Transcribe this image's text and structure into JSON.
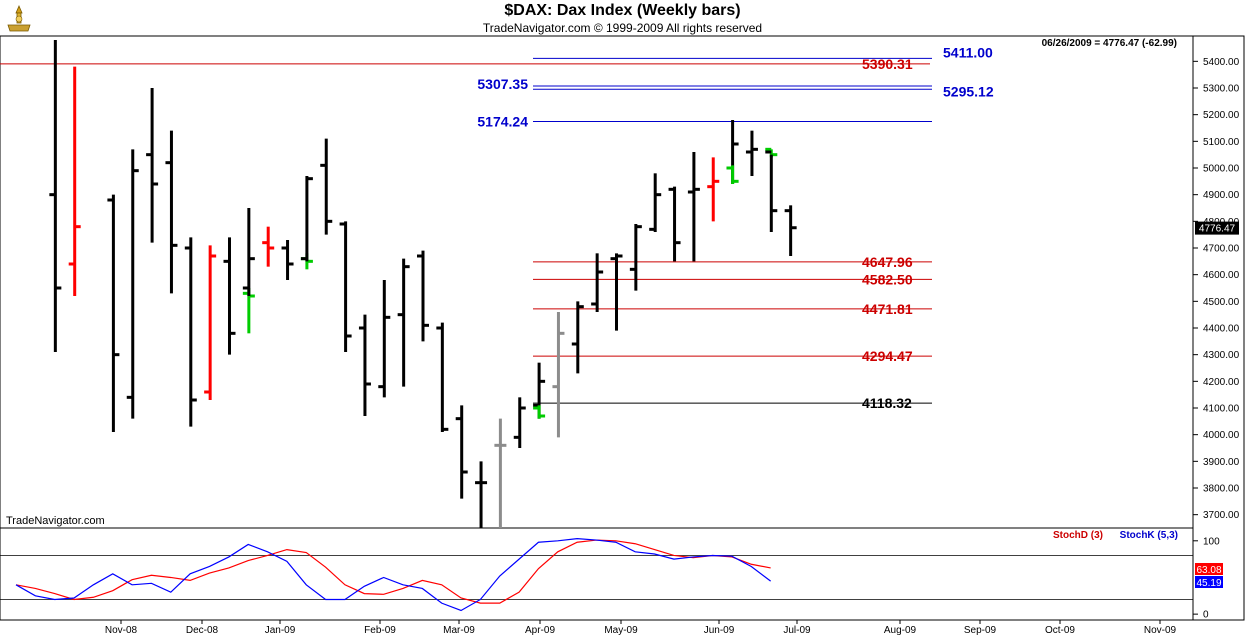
{
  "header": {
    "title": "$DAX:  Dax Index  (Weekly bars)",
    "subtitle": "TradeNavigator.com © 1999-2009 All rights reserved",
    "logo_icon": "trophy-icon"
  },
  "info": {
    "last_quote": "06/26/2009 = 4776.47 (-62.99)",
    "watermark": "TradeNavigator.com",
    "price_tag": "4776.47"
  },
  "colors": {
    "up": "#000000",
    "down_red": "#ff0000",
    "green": "#00cc00",
    "gray": "#8c8c8c",
    "level_blue": "#0000cc",
    "level_red": "#cc0000",
    "stoch_d": "#ff0000",
    "stoch_k": "#0000ff"
  },
  "chart_data": [
    {
      "type": "ohlc",
      "title": "$DAX:  Dax Index  (Weekly bars)",
      "ylim": [
        3650,
        5480
      ],
      "y_ticks": [
        3700,
        3800,
        3900,
        4000,
        4100,
        4200,
        4300,
        4400,
        4500,
        4600,
        4700,
        4800,
        4900,
        5000,
        5100,
        5200,
        5300,
        5400
      ],
      "x_labels": [
        "Nov-08",
        "Dec-08",
        "Jan-09",
        "Feb-09",
        "Mar-09",
        "Apr-09",
        "May-09",
        "Jun-09",
        "Jul-09",
        "Aug-09",
        "Sep-09",
        "Oct-09",
        "Nov-09"
      ],
      "grid": false,
      "bars": [
        {
          "week": 1,
          "o": 4900,
          "h": 5480,
          "l": 4310,
          "c": 4550,
          "color": "black"
        },
        {
          "week": 2,
          "o": 4640,
          "h": 5380,
          "l": 4520,
          "c": 4780,
          "color": "red"
        },
        {
          "week": 4,
          "o": 4880,
          "h": 4900,
          "l": 4010,
          "c": 4300,
          "color": "black"
        },
        {
          "week": 5,
          "o": 4140,
          "h": 5070,
          "l": 4060,
          "c": 4990,
          "color": "black"
        },
        {
          "week": 6,
          "o": 5050,
          "h": 5300,
          "l": 4720,
          "c": 4940,
          "color": "black"
        },
        {
          "week": 7,
          "o": 5020,
          "h": 5140,
          "l": 4530,
          "c": 4710,
          "color": "black"
        },
        {
          "week": 8,
          "o": 4700,
          "h": 4740,
          "l": 4030,
          "c": 4130,
          "color": "black"
        },
        {
          "week": 9,
          "o": 4160,
          "h": 4710,
          "l": 4130,
          "c": 4670,
          "color": "red"
        },
        {
          "week": 10,
          "o": 4650,
          "h": 4740,
          "l": 4300,
          "c": 4380,
          "color": "black"
        },
        {
          "week": 11,
          "o": 4530,
          "h": 4550,
          "l": 4380,
          "c": 4520,
          "color": "green"
        },
        {
          "week": 11,
          "o": 4550,
          "h": 4850,
          "l": 4520,
          "c": 4660,
          "color": "black"
        },
        {
          "week": 12,
          "o": 4720,
          "h": 4780,
          "l": 4630,
          "c": 4700,
          "color": "red"
        },
        {
          "week": 13,
          "o": 4700,
          "h": 4730,
          "l": 4580,
          "c": 4640,
          "color": "black"
        },
        {
          "week": 14,
          "o": 4660,
          "h": 4680,
          "l": 4620,
          "c": 4650,
          "color": "green"
        },
        {
          "week": 14,
          "o": 4660,
          "h": 4970,
          "l": 4650,
          "c": 4960,
          "color": "black"
        },
        {
          "week": 15,
          "o": 5010,
          "h": 5110,
          "l": 4750,
          "c": 4800,
          "color": "black"
        },
        {
          "week": 16,
          "o": 4790,
          "h": 4800,
          "l": 4310,
          "c": 4370,
          "color": "black"
        },
        {
          "week": 17,
          "o": 4400,
          "h": 4450,
          "l": 4070,
          "c": 4190,
          "color": "black"
        },
        {
          "week": 18,
          "o": 4180,
          "h": 4580,
          "l": 4140,
          "c": 4440,
          "color": "black"
        },
        {
          "week": 19,
          "o": 4450,
          "h": 4660,
          "l": 4180,
          "c": 4630,
          "color": "black"
        },
        {
          "week": 20,
          "o": 4670,
          "h": 4690,
          "l": 4350,
          "c": 4410,
          "color": "black"
        },
        {
          "week": 21,
          "o": 4400,
          "h": 4420,
          "l": 4010,
          "c": 4020,
          "color": "black"
        },
        {
          "week": 22,
          "o": 4060,
          "h": 4110,
          "l": 3760,
          "c": 3860,
          "color": "black"
        },
        {
          "week": 23,
          "o": 3820,
          "h": 3900,
          "l": 3650,
          "c": 3820,
          "color": "black"
        },
        {
          "week": 24,
          "o": 3960,
          "h": 4060,
          "l": 3650,
          "c": 3960,
          "color": "gray"
        },
        {
          "week": 25,
          "o": 3990,
          "h": 4140,
          "l": 3950,
          "c": 4100,
          "color": "black"
        },
        {
          "week": 26,
          "o": 4110,
          "h": 4270,
          "l": 4060,
          "c": 4200,
          "color": "black"
        },
        {
          "week": 26,
          "o": 4100,
          "h": 4110,
          "l": 4060,
          "c": 4070,
          "color": "green"
        },
        {
          "week": 27,
          "o": 4180,
          "h": 4460,
          "l": 3990,
          "c": 4380,
          "color": "gray"
        },
        {
          "week": 28,
          "o": 4340,
          "h": 4500,
          "l": 4230,
          "c": 4480,
          "color": "black"
        },
        {
          "week": 29,
          "o": 4490,
          "h": 4680,
          "l": 4460,
          "c": 4610,
          "color": "black"
        },
        {
          "week": 30,
          "o": 4660,
          "h": 4680,
          "l": 4390,
          "c": 4670,
          "color": "black"
        },
        {
          "week": 31,
          "o": 4620,
          "h": 4790,
          "l": 4540,
          "c": 4780,
          "color": "black"
        },
        {
          "week": 32,
          "o": 4770,
          "h": 4980,
          "l": 4760,
          "c": 4900,
          "color": "black"
        },
        {
          "week": 33,
          "o": 4920,
          "h": 4930,
          "l": 4650,
          "c": 4720,
          "color": "black"
        },
        {
          "week": 34,
          "o": 4910,
          "h": 5060,
          "l": 4650,
          "c": 4920,
          "color": "black"
        },
        {
          "week": 35,
          "o": 4930,
          "h": 5040,
          "l": 4800,
          "c": 4950,
          "color": "red"
        },
        {
          "week": 36,
          "o": 5000,
          "h": 5180,
          "l": 4940,
          "c": 5090,
          "color": "black"
        },
        {
          "week": 36,
          "o": 5000,
          "h": 5010,
          "l": 4940,
          "c": 4950,
          "color": "green"
        },
        {
          "week": 37,
          "o": 5060,
          "h": 5140,
          "l": 4970,
          "c": 5070,
          "color": "black"
        },
        {
          "week": 38,
          "o": 5070,
          "h": 5070,
          "l": 5040,
          "c": 5050,
          "color": "green"
        },
        {
          "week": 38,
          "o": 5060,
          "h": 5050,
          "l": 4760,
          "c": 4840,
          "color": "black"
        },
        {
          "week": 39,
          "o": 4840,
          "h": 4860,
          "l": 4670,
          "c": 4776,
          "color": "black"
        }
      ],
      "levels": [
        {
          "value": 5411.0,
          "label": "5411.00",
          "color": "blue",
          "label_side": "right"
        },
        {
          "value": 5390.31,
          "label": "5390.31",
          "color": "red",
          "label_side": "right"
        },
        {
          "value": 5307.35,
          "label": "5307.35",
          "color": "blue",
          "label_side": "left"
        },
        {
          "value": 5295.12,
          "label": "5295.12",
          "color": "blue",
          "label_side": "right"
        },
        {
          "value": 5174.24,
          "label": "5174.24",
          "color": "blue",
          "label_side": "left"
        },
        {
          "value": 4647.96,
          "label": "4647.96",
          "color": "red",
          "label_side": "right"
        },
        {
          "value": 4582.5,
          "label": "4582.50",
          "color": "red",
          "label_side": "right"
        },
        {
          "value": 4471.81,
          "label": "4471.81",
          "color": "red",
          "label_side": "right"
        },
        {
          "value": 4294.47,
          "label": "4294.47",
          "color": "red",
          "label_side": "right"
        },
        {
          "value": 4118.32,
          "label": "4118.32",
          "color": "black",
          "label_side": "right"
        }
      ]
    },
    {
      "type": "line",
      "ylim": [
        -8,
        112
      ],
      "y_ticks": [
        0,
        100
      ],
      "reference_lines": [
        20,
        80
      ],
      "legend": [
        {
          "name": "StochD (3)",
          "color": "red"
        },
        {
          "name": "StochK (5,3)",
          "color": "blue"
        }
      ],
      "last_values": {
        "d": "63.08",
        "k": "45.19"
      },
      "series": [
        {
          "name": "StochD (3)",
          "color": "red",
          "points": [
            [
              0,
              40
            ],
            [
              1,
              35
            ],
            [
              2,
              28
            ],
            [
              3,
              20
            ],
            [
              4,
              23
            ],
            [
              5,
              32
            ],
            [
              6,
              47
            ],
            [
              7,
              53
            ],
            [
              8,
              50
            ],
            [
              9,
              46
            ],
            [
              10,
              56
            ],
            [
              11,
              63
            ],
            [
              12,
              73
            ],
            [
              13,
              80
            ],
            [
              14,
              88
            ],
            [
              15,
              84
            ],
            [
              16,
              64
            ],
            [
              17,
              40
            ],
            [
              18,
              28
            ],
            [
              19,
              27
            ],
            [
              20,
              35
            ],
            [
              21,
              46
            ],
            [
              22,
              40
            ],
            [
              23,
              22
            ],
            [
              24,
              15
            ],
            [
              25,
              15
            ],
            [
              26,
              30
            ],
            [
              27,
              62
            ],
            [
              28,
              85
            ],
            [
              29,
              98
            ],
            [
              30,
              101
            ],
            [
              31,
              100
            ],
            [
              32,
              96
            ],
            [
              33,
              88
            ],
            [
              34,
              80
            ],
            [
              35,
              77
            ],
            [
              36,
              80
            ],
            [
              37,
              78
            ],
            [
              38,
              68
            ],
            [
              39,
              63
            ]
          ]
        },
        {
          "name": "StochK (5,3)",
          "color": "blue",
          "points": [
            [
              0,
              40
            ],
            [
              1,
              25
            ],
            [
              2,
              20
            ],
            [
              3,
              22
            ],
            [
              4,
              40
            ],
            [
              5,
              55
            ],
            [
              6,
              40
            ],
            [
              7,
              42
            ],
            [
              8,
              30
            ],
            [
              9,
              55
            ],
            [
              10,
              65
            ],
            [
              11,
              78
            ],
            [
              12,
              95
            ],
            [
              13,
              85
            ],
            [
              14,
              72
            ],
            [
              15,
              40
            ],
            [
              16,
              20
            ],
            [
              17,
              20
            ],
            [
              18,
              38
            ],
            [
              19,
              50
            ],
            [
              20,
              40
            ],
            [
              21,
              35
            ],
            [
              22,
              15
            ],
            [
              23,
              5
            ],
            [
              24,
              20
            ],
            [
              25,
              52
            ],
            [
              26,
              75
            ],
            [
              27,
              98
            ],
            [
              28,
              100
            ],
            [
              29,
              103
            ],
            [
              30,
              101
            ],
            [
              31,
              98
            ],
            [
              32,
              85
            ],
            [
              33,
              82
            ],
            [
              34,
              75
            ],
            [
              35,
              78
            ],
            [
              36,
              80
            ],
            [
              37,
              79
            ],
            [
              38,
              65
            ],
            [
              39,
              45
            ]
          ]
        }
      ]
    }
  ]
}
